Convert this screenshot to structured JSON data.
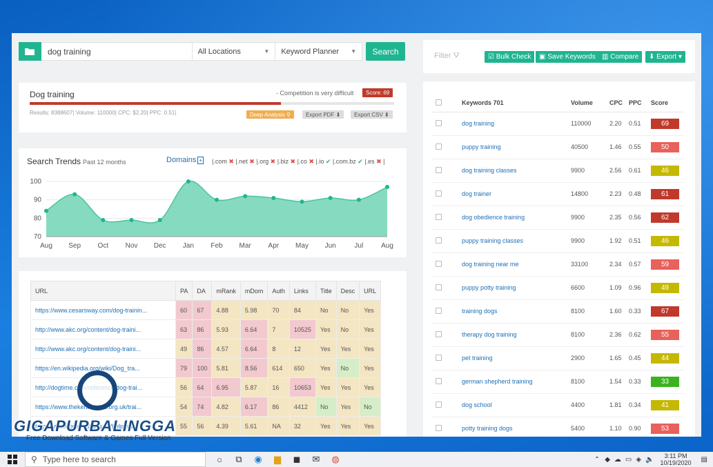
{
  "search": {
    "query": "dog training",
    "location": "All Locations",
    "source": "Keyword Planner",
    "search_label": "Search"
  },
  "competition": {
    "title": "Dog training",
    "difficulty_text": "- Competition is very difficult",
    "score_label": "Score: 69",
    "difficulty_score": 69,
    "meta": "Results: 8388607| Volume: 110000| CPC: $2.20| PPC: 0.51|",
    "deep_label": "Deep Analysis",
    "pdf_label": "Export PDF",
    "csv_label": "Export CSV"
  },
  "trends": {
    "title": "Search Trends",
    "subtitle": "Past 12 months",
    "domains_label": "Domains",
    "domains": [
      {
        "name": "|.com",
        "ok": false
      },
      {
        "name": "|.net",
        "ok": false
      },
      {
        "name": "|.org",
        "ok": false
      },
      {
        "name": "|.biz",
        "ok": false
      },
      {
        "name": "|.co",
        "ok": false
      },
      {
        "name": "|.io",
        "ok": true
      },
      {
        "name": "|.com.bz",
        "ok": true
      },
      {
        "name": "|.es",
        "ok": false
      }
    ],
    "dom_end": "|"
  },
  "chart_data": {
    "type": "area",
    "categories": [
      "Aug",
      "Sep",
      "Oct",
      "Nov",
      "Dec",
      "Jan",
      "Feb",
      "Mar",
      "Apr",
      "May",
      "Jun",
      "Jul",
      "Aug"
    ],
    "values": [
      84,
      93,
      79,
      79,
      79,
      100,
      90,
      92,
      91,
      89,
      91,
      90,
      97
    ],
    "ylim": [
      70,
      100
    ],
    "yticks": [
      70,
      80,
      90,
      100
    ],
    "color": "#7fd8bd",
    "grid": true
  },
  "urls": {
    "headers": [
      "URL",
      "PA",
      "DA",
      "mRank",
      "mDom",
      "Auth",
      "Links",
      "Title",
      "Desc",
      "URL"
    ],
    "rows": [
      {
        "cells": [
          "https://www.cesarsway.com/dog-trainin...",
          "60",
          "67",
          "4.88",
          "5.98",
          "70",
          "84",
          "No",
          "No",
          "Yes"
        ],
        "colors": [
          "",
          "r",
          "r",
          "y",
          "y",
          "y",
          "y",
          "y",
          "y",
          "y"
        ]
      },
      {
        "cells": [
          "http://www.akc.org/content/dog-traini...",
          "63",
          "86",
          "5.93",
          "6.64",
          "7",
          "10525",
          "Yes",
          "No",
          "Yes"
        ],
        "colors": [
          "",
          "r",
          "r",
          "y",
          "r",
          "y",
          "r",
          "y",
          "y",
          "y"
        ]
      },
      {
        "cells": [
          "http://www.akc.org/content/dog-traini...",
          "49",
          "86",
          "4.57",
          "6.64",
          "8",
          "12",
          "Yes",
          "Yes",
          "Yes"
        ],
        "colors": [
          "",
          "y",
          "r",
          "y",
          "r",
          "y",
          "y",
          "y",
          "y",
          "y"
        ]
      },
      {
        "cells": [
          "https://en.wikipedia.org/wiki/Dog_tra...",
          "79",
          "100",
          "5.81",
          "8.56",
          "614",
          "650",
          "Yes",
          "No",
          "Yes"
        ],
        "colors": [
          "",
          "r",
          "r",
          "y",
          "r",
          "y",
          "y",
          "y",
          "g",
          "y"
        ]
      },
      {
        "cells": [
          "http://dogtime.com/reference/dog-trai...",
          "56",
          "64",
          "6.95",
          "5.87",
          "16",
          "10653",
          "Yes",
          "Yes",
          "Yes"
        ],
        "colors": [
          "",
          "y",
          "r",
          "r",
          "y",
          "y",
          "r",
          "y",
          "y",
          "y"
        ]
      },
      {
        "cells": [
          "https://www.thekennelclub.org.uk/trai...",
          "54",
          "74",
          "4.82",
          "6.17",
          "86",
          "4412",
          "No",
          "Yes",
          "No"
        ],
        "colors": [
          "",
          "y",
          "r",
          "y",
          "r",
          "y",
          "y",
          "g",
          "y",
          "g"
        ]
      },
      {
        "cells": [
          "http://www.dogstrust.org.uk/help-adv...",
          "55",
          "56",
          "4.39",
          "5.61",
          "NA",
          "32",
          "Yes",
          "Yes",
          "Yes"
        ],
        "colors": [
          "",
          "y",
          "y",
          "y",
          "y",
          "y",
          "y",
          "y",
          "y",
          "y"
        ]
      }
    ]
  },
  "toolbar": {
    "filter_label": "Filter",
    "bulk_label": "Bulk Check",
    "save_label": "Save Keywords",
    "compare_label": "Compare",
    "export_label": "Export"
  },
  "keywords": {
    "headers": [
      "",
      "Keywords 701",
      "Volume",
      "CPC",
      "PPC",
      "Score"
    ],
    "rows": [
      {
        "keyword": "dog training",
        "volume": "110000",
        "cpc": "2.20",
        "ppc": "0.51",
        "score": "69",
        "color": "#c0392b"
      },
      {
        "keyword": "puppy training",
        "volume": "40500",
        "cpc": "1.46",
        "ppc": "0.55",
        "score": "50",
        "color": "#e8615a"
      },
      {
        "keyword": "dog training classes",
        "volume": "9900",
        "cpc": "2.56",
        "ppc": "0.61",
        "score": "46",
        "color": "#c5b800"
      },
      {
        "keyword": "dog trainer",
        "volume": "14800",
        "cpc": "2.23",
        "ppc": "0.48",
        "score": "61",
        "color": "#c0392b"
      },
      {
        "keyword": "dog obedience training",
        "volume": "9900",
        "cpc": "2.35",
        "ppc": "0.56",
        "score": "62",
        "color": "#c0392b"
      },
      {
        "keyword": "puppy training classes",
        "volume": "9900",
        "cpc": "1.92",
        "ppc": "0.51",
        "score": "46",
        "color": "#c5b800"
      },
      {
        "keyword": "dog training near me",
        "volume": "33100",
        "cpc": "2.34",
        "ppc": "0.57",
        "score": "59",
        "color": "#e8615a"
      },
      {
        "keyword": "puppy potty training",
        "volume": "6600",
        "cpc": "1.09",
        "ppc": "0.96",
        "score": "49",
        "color": "#c5b800"
      },
      {
        "keyword": "training dogs",
        "volume": "8100",
        "cpc": "1.60",
        "ppc": "0.33",
        "score": "67",
        "color": "#c0392b"
      },
      {
        "keyword": "therapy dog training",
        "volume": "8100",
        "cpc": "2.36",
        "ppc": "0.62",
        "score": "55",
        "color": "#e8615a"
      },
      {
        "keyword": "pet training",
        "volume": "2900",
        "cpc": "1.65",
        "ppc": "0.45",
        "score": "44",
        "color": "#c5b800"
      },
      {
        "keyword": "german shepherd training",
        "volume": "8100",
        "cpc": "1.54",
        "ppc": "0.33",
        "score": "33",
        "color": "#3cb31e"
      },
      {
        "keyword": "dog school",
        "volume": "4400",
        "cpc": "1.81",
        "ppc": "0.34",
        "score": "41",
        "color": "#c5b800"
      },
      {
        "keyword": "potty training dogs",
        "volume": "5400",
        "cpc": "1.10",
        "ppc": "0.90",
        "score": "53",
        "color": "#e8615a"
      }
    ]
  },
  "watermark": {
    "brand": "GIGAPURBALINGGA",
    "tagline": "Free Download Software & Games Full Version"
  },
  "taskbar": {
    "search_placeholder": "Type here to search",
    "time": "3:11 PM",
    "date": "10/19/2020"
  }
}
